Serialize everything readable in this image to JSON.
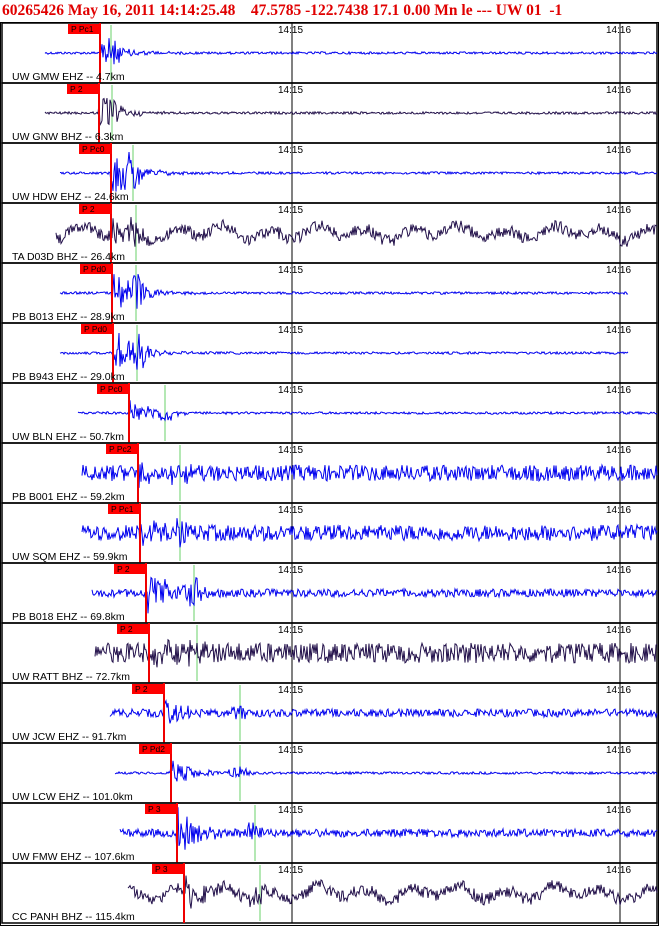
{
  "header": {
    "text": "60265426 May 16, 2011 14:14:25.48    47.5785 -122.7438 17.1 0.00 Mn le --- UW 01  -1"
  },
  "chart_data": {
    "type": "line",
    "title": "60265426 May 16, 2011 14:14:25.48    47.5785 -122.7438 17.1 0.00 Mn le --- UW 01  -1",
    "time_ticks": [
      "14:15",
      "14:16"
    ],
    "grid": true,
    "colors": {
      "ehz_trace": "#0000ee",
      "bhz_trace": "#22104a",
      "p_pick": "#ee0000",
      "s_marker": "#9be09b",
      "border": "#000000",
      "pick_label_bg": "#ff0000"
    },
    "channels": [
      {
        "label": "UW GMW EHZ -- 4.7km",
        "pick": "P Pc1",
        "component": "EHZ",
        "amplitude": "medium",
        "noise": "low"
      },
      {
        "label": "UW GNW BHZ -- 6.3km",
        "pick": "P 2",
        "component": "BHZ",
        "amplitude": "medium",
        "noise": "low"
      },
      {
        "label": "UW HDW EHZ -- 24.6km",
        "pick": "P Pc0",
        "component": "EHZ",
        "amplitude": "large",
        "noise": "low"
      },
      {
        "label": "TA D03D BHZ -- 26.4km",
        "pick": "P 2",
        "component": "BHZ",
        "amplitude": "medium",
        "noise": "swell"
      },
      {
        "label": "PB B013 EHZ -- 28.9km",
        "pick": "P Pd0",
        "component": "EHZ",
        "amplitude": "large",
        "noise": "low"
      },
      {
        "label": "PB B943 EHZ -- 29.0km",
        "pick": "P Pd0",
        "component": "EHZ",
        "amplitude": "large",
        "noise": "low"
      },
      {
        "label": "UW BLN EHZ -- 50.7km",
        "pick": "P Pc0",
        "component": "EHZ",
        "amplitude": "medium",
        "noise": "low"
      },
      {
        "label": "PB B001 EHZ -- 59.2km",
        "pick": "P Pc2",
        "component": "EHZ",
        "amplitude": "medium",
        "noise": "high"
      },
      {
        "label": "UW SQM EHZ -- 59.9km",
        "pick": "P Pc1",
        "component": "EHZ",
        "amplitude": "medium",
        "noise": "high"
      },
      {
        "label": "PB B018 EHZ -- 69.8km",
        "pick": "P 2",
        "component": "EHZ",
        "amplitude": "large",
        "noise": "medium"
      },
      {
        "label": "UW RATT BHZ -- 72.7km",
        "pick": "P 2",
        "component": "BHZ",
        "amplitude": "medium",
        "noise": "rough"
      },
      {
        "label": "UW JCW EHZ -- 91.7km",
        "pick": "P 2",
        "component": "EHZ",
        "amplitude": "medium",
        "noise": "medium"
      },
      {
        "label": "UW LCW EHZ -- 101.0km",
        "pick": "P Pd2",
        "component": "EHZ",
        "amplitude": "medium",
        "noise": "low"
      },
      {
        "label": "UW FMW EHZ -- 107.6km",
        "pick": "P 3",
        "component": "EHZ",
        "amplitude": "large",
        "noise": "medium"
      },
      {
        "label": "CC PANH BHZ -- 115.4km",
        "pick": "P 3",
        "component": "BHZ",
        "amplitude": "medium",
        "noise": "swell"
      }
    ]
  }
}
